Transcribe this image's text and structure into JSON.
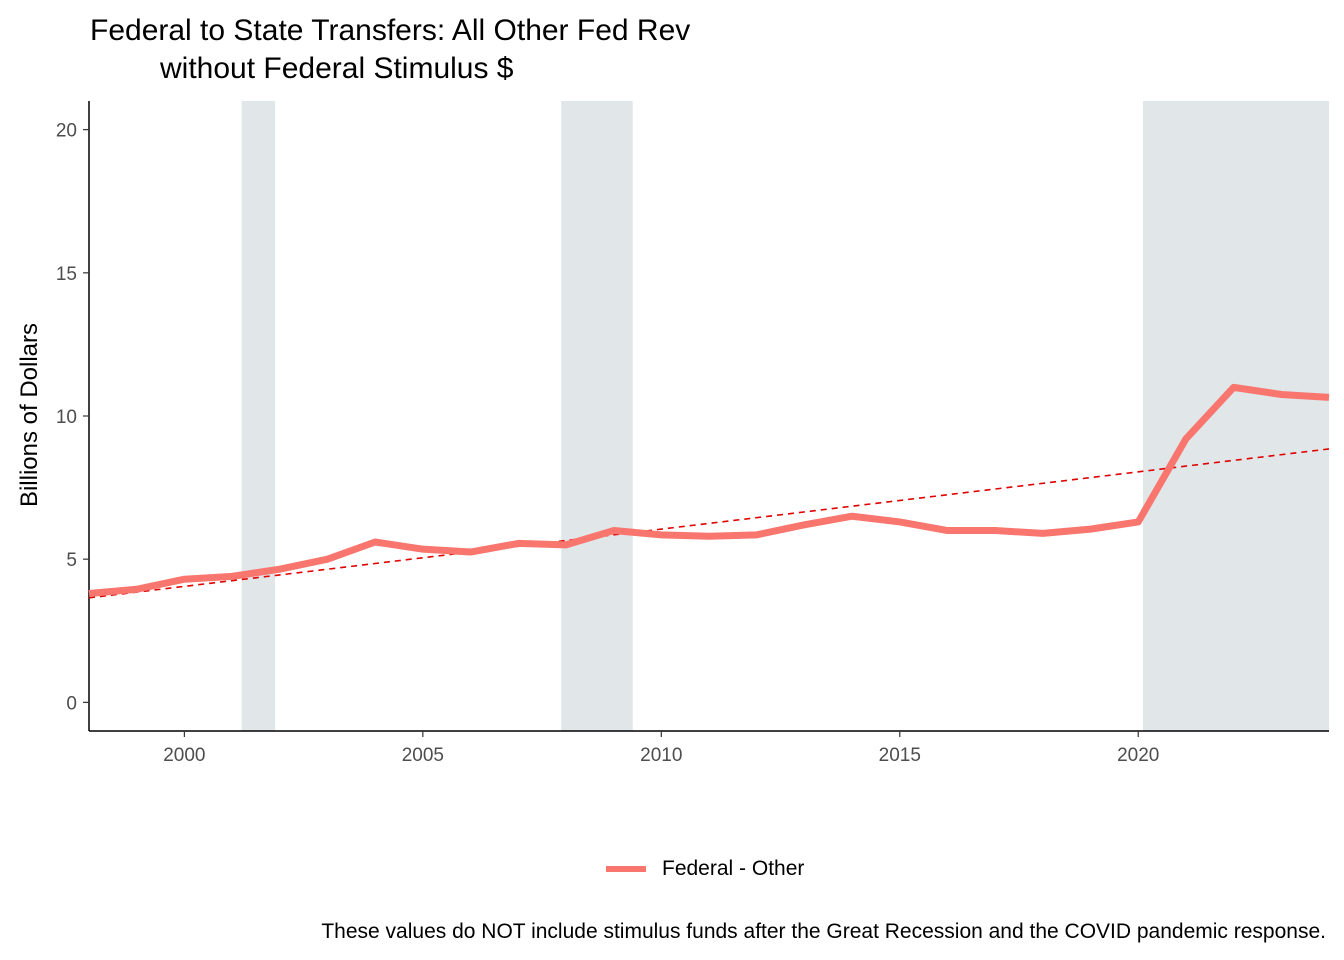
{
  "chart_data": {
    "type": "line",
    "title_line1": "Federal to State Transfers: All Other Fed Rev",
    "title_line2": "without Federal Stimulus $",
    "xlabel": "",
    "ylabel": "Billions of Dollars",
    "xlim": [
      1998,
      2024
    ],
    "ylim": [
      -1,
      21
    ],
    "x_ticks": [
      2000,
      2005,
      2010,
      2015,
      2020
    ],
    "y_ticks": [
      0,
      5,
      10,
      15,
      20
    ],
    "grid": false,
    "legend_position": "bottom",
    "recession_bands": [
      {
        "start": 2001.2,
        "end": 2001.9
      },
      {
        "start": 2007.9,
        "end": 2009.4
      },
      {
        "start": 2020.1,
        "end": 2024
      }
    ],
    "band_color": "#E1E6E9",
    "series": [
      {
        "name": "Federal - Other",
        "color": "#F8766D",
        "x": [
          1998,
          1999,
          2000,
          2001,
          2002,
          2003,
          2004,
          2005,
          2006,
          2007,
          2008,
          2009,
          2010,
          2011,
          2012,
          2013,
          2014,
          2015,
          2016,
          2017,
          2018,
          2019,
          2020,
          2021,
          2022,
          2023,
          2024
        ],
        "y": [
          3.8,
          3.95,
          4.3,
          4.4,
          4.65,
          5.0,
          5.6,
          5.35,
          5.25,
          5.55,
          5.5,
          6.0,
          5.85,
          5.8,
          5.85,
          6.2,
          6.5,
          6.3,
          6.0,
          6.0,
          5.9,
          6.05,
          6.3,
          9.2,
          11.0,
          10.75,
          10.65
        ]
      }
    ],
    "trend_line": {
      "color": "#E00000",
      "style": "dashed",
      "x": [
        1998,
        2024
      ],
      "y": [
        3.65,
        8.85
      ]
    }
  },
  "legend": {
    "label": "Federal - Other"
  },
  "caption": "These values do NOT include stimulus funds after the Great Recession and the COVID pandemic response."
}
